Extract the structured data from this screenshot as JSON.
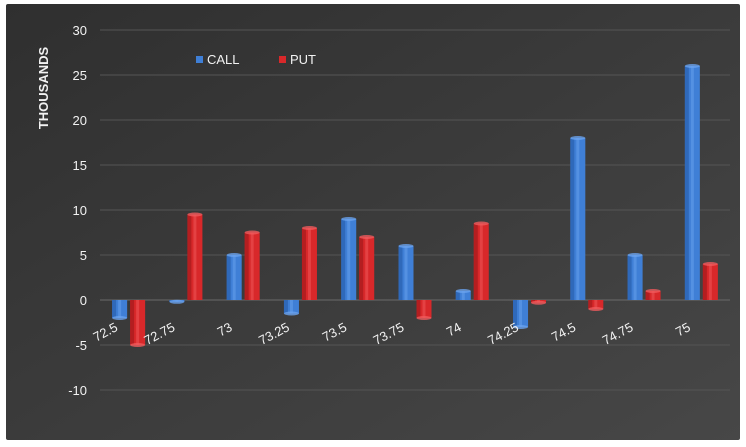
{
  "chart_data": {
    "type": "bar",
    "title": "",
    "xlabel": "",
    "ylabel": "THOUSANDS",
    "ylim": [
      -15,
      30
    ],
    "yticks": [
      30,
      25,
      20,
      15,
      10,
      5,
      0,
      -5,
      -10
    ],
    "grid": true,
    "legend_position": "top-left",
    "categories": [
      "72.5",
      "72.75",
      "73",
      "73.25",
      "73.5",
      "73.75",
      "74",
      "74.25",
      "74.5",
      "74.75",
      "75"
    ],
    "series": [
      {
        "name": "CALL",
        "color": "#3f7fd6",
        "values": [
          -2,
          -0.2,
          5,
          -1.5,
          9,
          6,
          1,
          -3,
          18,
          5,
          26
        ]
      },
      {
        "name": "PUT",
        "color": "#d8282a",
        "values": [
          -5,
          9.5,
          7.5,
          8,
          7,
          -2,
          8.5,
          -0.3,
          -1,
          1,
          4
        ]
      }
    ],
    "colors": {
      "background": "#3a3a3a",
      "grid": "#555555",
      "text": "#f2f2f2"
    }
  }
}
